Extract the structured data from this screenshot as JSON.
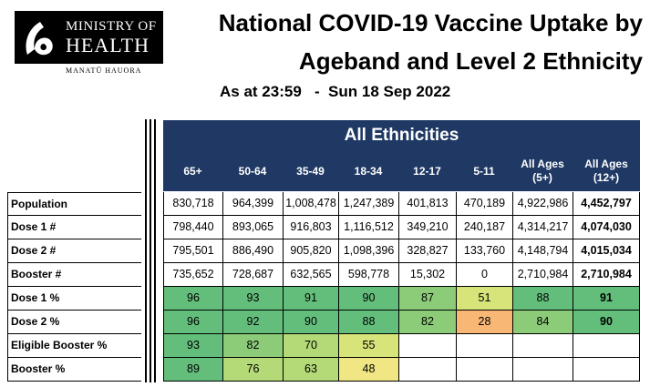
{
  "logo": {
    "line1": "MINISTRY OF",
    "line2": "HEALTH",
    "subtitle": "MANATŪ HAUORA"
  },
  "title": {
    "line1": "National COVID-19 Vaccine Uptake by",
    "line2": "Ageband and Level 2 Ethnicity"
  },
  "as_at": "As at 23:59   -  Sun 18 Sep 2022",
  "table": {
    "group_header": "All Ethnicities",
    "columns": [
      "65+",
      "50-64",
      "35-49",
      "18-34",
      "12-17",
      "5-11",
      "All Ages (5+)",
      "All Ages (12+)"
    ],
    "rows": [
      {
        "label": "Population",
        "values": [
          "830,718",
          "964,399",
          "1,008,478",
          "1,247,389",
          "401,813",
          "470,189",
          "4,922,986",
          "4,452,797"
        ]
      },
      {
        "label": "Dose 1 #",
        "values": [
          "798,440",
          "893,065",
          "916,803",
          "1,116,512",
          "349,210",
          "240,187",
          "4,314,217",
          "4,074,030"
        ]
      },
      {
        "label": "Dose 2 #",
        "values": [
          "795,501",
          "886,490",
          "905,820",
          "1,098,396",
          "328,827",
          "133,760",
          "4,148,794",
          "4,015,034"
        ]
      },
      {
        "label": "Booster #",
        "values": [
          "735,652",
          "728,687",
          "632,565",
          "598,778",
          "15,302",
          "0",
          "2,710,984",
          "2,710,984"
        ]
      },
      {
        "label": "Dose 1 %",
        "values": [
          "96",
          "93",
          "91",
          "90",
          "87",
          "51",
          "88",
          "91"
        ]
      },
      {
        "label": "Dose 2 %",
        "values": [
          "96",
          "92",
          "90",
          "88",
          "82",
          "28",
          "84",
          "90"
        ]
      },
      {
        "label": "Eligible Booster %",
        "values": [
          "93",
          "82",
          "70",
          "55",
          "",
          "",
          "",
          ""
        ]
      },
      {
        "label": "Booster %",
        "values": [
          "89",
          "76",
          "63",
          "48",
          "",
          "",
          "",
          ""
        ]
      }
    ]
  },
  "colors": {
    "header_bg": "#1f3864",
    "green_high": "#63be7b",
    "green_mid": "#8ccc79",
    "green_light": "#b4d977",
    "yellow_green": "#d6e47a",
    "yellow": "#f0e684",
    "orange": "#f8b774"
  }
}
